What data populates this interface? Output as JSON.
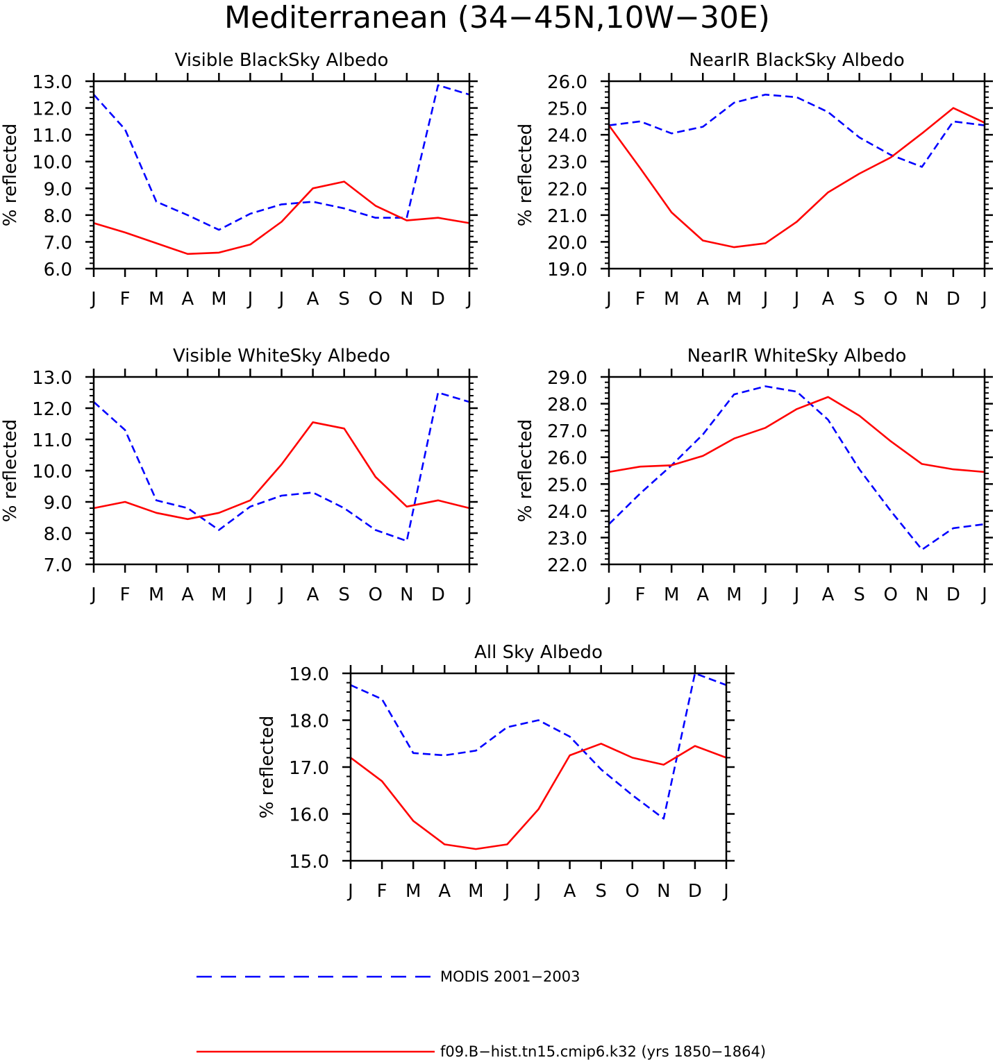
{
  "title": "Mediterranean (34−45N,10W−30E)",
  "colors": {
    "modis": "#0000ff",
    "model": "#ff0000",
    "axes": "#000000"
  },
  "legend": {
    "modis_label": "MODIS 2001−2003",
    "model_label": "f09.B−hist.tn15.cmip6.k32 (yrs 1850−1864)"
  },
  "chart_data": [
    {
      "type": "line",
      "title": "Visible BlackSky Albedo",
      "ylabel": "% reflected",
      "categories": [
        "J",
        "F",
        "M",
        "A",
        "M",
        "J",
        "J",
        "A",
        "S",
        "O",
        "N",
        "D",
        "J"
      ],
      "ylim": [
        6.0,
        13.0
      ],
      "yticks": [
        "6.0",
        "7.0",
        "8.0",
        "9.0",
        "10.0",
        "11.0",
        "12.0",
        "13.0"
      ],
      "series": [
        {
          "name": "MODIS 2001−2003",
          "style": "dashed",
          "values": [
            12.5,
            11.2,
            8.5,
            8.0,
            7.45,
            8.05,
            8.4,
            8.5,
            8.25,
            7.9,
            7.9,
            12.85,
            12.5
          ]
        },
        {
          "name": "f09.B−hist.tn15.cmip6.k32 (yrs 1850−1864)",
          "style": "solid",
          "values": [
            7.7,
            7.35,
            6.95,
            6.55,
            6.6,
            6.9,
            7.75,
            9.0,
            9.25,
            8.35,
            7.8,
            7.9,
            7.7
          ]
        }
      ]
    },
    {
      "type": "line",
      "title": "NearIR BlackSky Albedo",
      "ylabel": "% reflected",
      "categories": [
        "J",
        "F",
        "M",
        "A",
        "M",
        "J",
        "J",
        "A",
        "S",
        "O",
        "N",
        "D",
        "J"
      ],
      "ylim": [
        19.0,
        26.0
      ],
      "yticks": [
        "19.0",
        "20.0",
        "21.0",
        "22.0",
        "23.0",
        "24.0",
        "25.0",
        "26.0"
      ],
      "series": [
        {
          "name": "MODIS 2001−2003",
          "style": "dashed",
          "values": [
            24.35,
            24.5,
            24.05,
            24.3,
            25.2,
            25.5,
            25.4,
            24.85,
            23.9,
            23.25,
            22.8,
            24.5,
            24.35
          ]
        },
        {
          "name": "f09.B−hist.tn15.cmip6.k32 (yrs 1850−1864)",
          "style": "solid",
          "values": [
            24.35,
            22.75,
            21.1,
            20.05,
            19.8,
            19.95,
            20.75,
            21.85,
            22.55,
            23.15,
            24.05,
            25.0,
            24.45
          ]
        }
      ]
    },
    {
      "type": "line",
      "title": "Visible WhiteSky Albedo",
      "ylabel": "% reflected",
      "categories": [
        "J",
        "F",
        "M",
        "A",
        "M",
        "J",
        "J",
        "A",
        "S",
        "O",
        "N",
        "D",
        "J"
      ],
      "ylim": [
        7.0,
        13.0
      ],
      "yticks": [
        "7.0",
        "8.0",
        "9.0",
        "10.0",
        "11.0",
        "12.0",
        "13.0"
      ],
      "series": [
        {
          "name": "MODIS 2001−2003",
          "style": "dashed",
          "values": [
            12.2,
            11.3,
            9.05,
            8.8,
            8.1,
            8.85,
            9.2,
            9.3,
            8.8,
            8.1,
            7.75,
            12.5,
            12.2
          ]
        },
        {
          "name": "f09.B−hist.tn15.cmip6.k32 (yrs 1850−1864)",
          "style": "solid",
          "values": [
            8.8,
            9.0,
            8.65,
            8.45,
            8.65,
            9.05,
            10.2,
            11.55,
            11.35,
            9.8,
            8.85,
            9.05,
            8.8
          ]
        }
      ]
    },
    {
      "type": "line",
      "title": "NearIR WhiteSky Albedo",
      "ylabel": "% reflected",
      "categories": [
        "J",
        "F",
        "M",
        "A",
        "M",
        "J",
        "J",
        "A",
        "S",
        "O",
        "N",
        "D",
        "J"
      ],
      "ylim": [
        22.0,
        29.0
      ],
      "yticks": [
        "22.0",
        "23.0",
        "24.0",
        "25.0",
        "26.0",
        "27.0",
        "28.0",
        "29.0"
      ],
      "series": [
        {
          "name": "MODIS 2001−2003",
          "style": "dashed",
          "values": [
            23.5,
            24.65,
            25.7,
            26.85,
            28.35,
            28.65,
            28.45,
            27.4,
            25.55,
            24.0,
            22.55,
            23.35,
            23.5
          ]
        },
        {
          "name": "f09.B−hist.tn15.cmip6.k32 (yrs 1850−1864)",
          "style": "solid",
          "values": [
            25.45,
            25.65,
            25.7,
            26.05,
            26.7,
            27.1,
            27.8,
            28.25,
            27.55,
            26.6,
            25.75,
            25.55,
            25.45
          ]
        }
      ]
    },
    {
      "type": "line",
      "title": "All Sky Albedo",
      "ylabel": "% reflected",
      "categories": [
        "J",
        "F",
        "M",
        "A",
        "M",
        "J",
        "J",
        "A",
        "S",
        "O",
        "N",
        "D",
        "J"
      ],
      "ylim": [
        15.0,
        19.0
      ],
      "yticks": [
        "15.0",
        "16.0",
        "17.0",
        "18.0",
        "19.0"
      ],
      "series": [
        {
          "name": "MODIS 2001−2003",
          "style": "dashed",
          "values": [
            18.75,
            18.45,
            17.3,
            17.25,
            17.35,
            17.85,
            18.0,
            17.65,
            16.95,
            16.4,
            15.9,
            19.0,
            18.75
          ]
        },
        {
          "name": "f09.B−hist.tn15.cmip6.k32 (yrs 1850−1864)",
          "style": "solid",
          "values": [
            17.2,
            16.7,
            15.85,
            15.35,
            15.25,
            15.35,
            16.1,
            17.25,
            17.5,
            17.2,
            17.05,
            17.45,
            17.2
          ]
        }
      ]
    }
  ]
}
